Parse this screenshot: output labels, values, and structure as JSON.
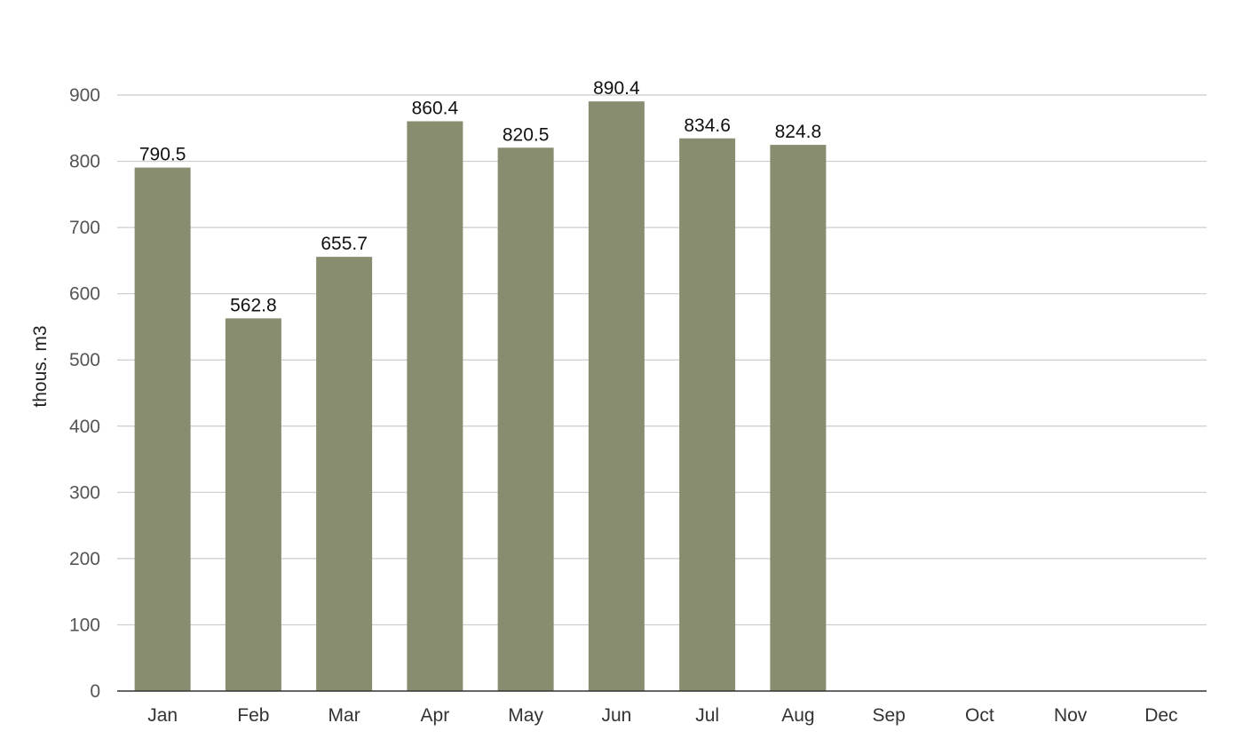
{
  "chart_data": {
    "type": "bar",
    "categories": [
      "Jan",
      "Feb",
      "Mar",
      "Apr",
      "May",
      "Jun",
      "Jul",
      "Aug",
      "Sep",
      "Oct",
      "Nov",
      "Dec"
    ],
    "values": [
      790.5,
      562.8,
      655.7,
      860.4,
      820.5,
      890.4,
      834.6,
      824.8,
      null,
      null,
      null,
      null
    ],
    "data_labels": [
      "790.5",
      "562.8",
      "655.7",
      "860.4",
      "820.5",
      "890.4",
      "834.6",
      "824.8",
      "",
      "",
      "",
      ""
    ],
    "title": "",
    "xlabel": "",
    "ylabel": "thous. m3",
    "ylim": [
      0,
      900
    ],
    "yticks": [
      0,
      100,
      200,
      300,
      400,
      500,
      600,
      700,
      800,
      900
    ],
    "grid": true,
    "legend": "none",
    "bar_color": "#898d70"
  }
}
